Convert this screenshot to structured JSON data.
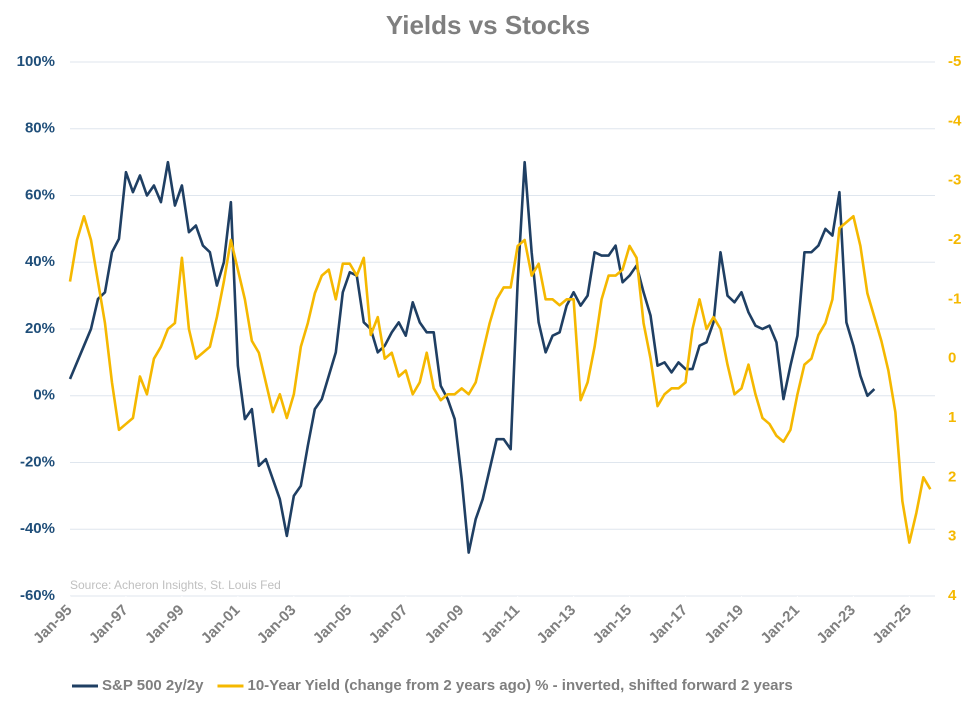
{
  "chart_data": {
    "type": "line",
    "title": "Yields vs Stocks",
    "source": "Source: Acheron Insights, St. Louis Fed",
    "x": [
      "1995-01",
      "1995-04",
      "1995-07",
      "1995-10",
      "1996-01",
      "1996-04",
      "1996-07",
      "1996-10",
      "1997-01",
      "1997-04",
      "1997-07",
      "1997-10",
      "1998-01",
      "1998-04",
      "1998-07",
      "1998-10",
      "1999-01",
      "1999-04",
      "1999-07",
      "1999-10",
      "2000-01",
      "2000-04",
      "2000-07",
      "2000-10",
      "2001-01",
      "2001-04",
      "2001-07",
      "2001-10",
      "2002-01",
      "2002-04",
      "2002-07",
      "2002-10",
      "2003-01",
      "2003-04",
      "2003-07",
      "2003-10",
      "2004-01",
      "2004-04",
      "2004-07",
      "2004-10",
      "2005-01",
      "2005-04",
      "2005-07",
      "2005-10",
      "2006-01",
      "2006-04",
      "2006-07",
      "2006-10",
      "2007-01",
      "2007-04",
      "2007-07",
      "2007-10",
      "2008-01",
      "2008-04",
      "2008-07",
      "2008-10",
      "2009-01",
      "2009-04",
      "2009-07",
      "2009-10",
      "2010-01",
      "2010-04",
      "2010-07",
      "2010-10",
      "2011-01",
      "2011-04",
      "2011-07",
      "2011-10",
      "2012-01",
      "2012-04",
      "2012-07",
      "2012-10",
      "2013-01",
      "2013-04",
      "2013-07",
      "2013-10",
      "2014-01",
      "2014-04",
      "2014-07",
      "2014-10",
      "2015-01",
      "2015-04",
      "2015-07",
      "2015-10",
      "2016-01",
      "2016-04",
      "2016-07",
      "2016-10",
      "2017-01",
      "2017-04",
      "2017-07",
      "2017-10",
      "2018-01",
      "2018-04",
      "2018-07",
      "2018-10",
      "2019-01",
      "2019-04",
      "2019-07",
      "2019-10",
      "2020-01",
      "2020-04",
      "2020-07",
      "2020-10",
      "2021-01",
      "2021-04",
      "2021-07",
      "2021-10",
      "2022-01",
      "2022-04",
      "2022-07",
      "2022-10",
      "2023-01",
      "2023-04",
      "2023-07",
      "2023-10",
      "2024-01",
      "2024-04",
      "2024-07",
      "2024-10",
      "2025-01",
      "2025-04",
      "2025-07",
      "2025-10"
    ],
    "series": [
      {
        "name": "S&P 500 2y/2y",
        "color": "#1f3f63",
        "axis": "y",
        "values": [
          5,
          10,
          15,
          20,
          29,
          31,
          43,
          47,
          67,
          61,
          66,
          60,
          63,
          58,
          70,
          57,
          63,
          49,
          51,
          45,
          43,
          33,
          40,
          58,
          9,
          -7,
          -4,
          -21,
          -19,
          -25,
          -31,
          -42,
          -30,
          -27,
          -15,
          -4,
          -1,
          6,
          13,
          31,
          37,
          36,
          22,
          20,
          13,
          15,
          19,
          22,
          18,
          28,
          22,
          19,
          19,
          3,
          -1,
          -7,
          -25,
          -47,
          -37,
          -31,
          -22,
          -13,
          -13,
          -16,
          34,
          70,
          43,
          22,
          13,
          18,
          19,
          27,
          31,
          27,
          30,
          43,
          42,
          42,
          45,
          34,
          36,
          39,
          31,
          24,
          9,
          10,
          7,
          10,
          8,
          8,
          15,
          16,
          22,
          43,
          30,
          28,
          31,
          25,
          21,
          20,
          21,
          16,
          -1,
          9,
          18,
          43,
          43,
          45,
          50,
          48,
          61,
          22,
          15,
          6,
          0,
          2,
          null,
          null,
          null,
          null,
          null,
          null,
          null,
          null
        ]
      },
      {
        "name": "10-Year Yield (change from 2 years ago) % - inverted, shifted forward 2 years",
        "color": "#f5b800",
        "axis": "y2",
        "values": [
          -1.3,
          -2.0,
          -2.4,
          -2.0,
          -1.3,
          -0.6,
          0.4,
          1.2,
          1.1,
          1.0,
          0.3,
          0.6,
          0.0,
          -0.2,
          -0.5,
          -0.6,
          -1.7,
          -0.5,
          0.0,
          -0.1,
          -0.2,
          -0.7,
          -1.3,
          -2.0,
          -1.5,
          -1.0,
          -0.3,
          -0.1,
          0.4,
          0.9,
          0.6,
          1.0,
          0.6,
          -0.2,
          -0.6,
          -1.1,
          -1.4,
          -1.5,
          -1.0,
          -1.6,
          -1.6,
          -1.4,
          -1.7,
          -0.4,
          -0.7,
          0.0,
          -0.1,
          0.3,
          0.2,
          0.6,
          0.4,
          -0.1,
          0.5,
          0.7,
          0.6,
          0.6,
          0.5,
          0.6,
          0.4,
          -0.1,
          -0.6,
          -1.0,
          -1.2,
          -1.2,
          -1.9,
          -2.0,
          -1.4,
          -1.6,
          -1.0,
          -1.0,
          -0.9,
          -1.0,
          -1.0,
          0.7,
          0.4,
          -0.2,
          -1.0,
          -1.4,
          -1.4,
          -1.5,
          -1.9,
          -1.7,
          -0.6,
          0.0,
          0.8,
          0.6,
          0.5,
          0.5,
          0.4,
          -0.5,
          -1.0,
          -0.5,
          -0.7,
          -0.5,
          0.1,
          0.6,
          0.5,
          0.1,
          0.6,
          1.0,
          1.1,
          1.3,
          1.4,
          1.2,
          0.6,
          0.1,
          0.0,
          -0.4,
          -0.6,
          -1.0,
          -2.2,
          -2.3,
          -2.4,
          -1.9,
          -1.1,
          -0.7,
          -0.3,
          0.2,
          0.9,
          2.4,
          3.1,
          2.6,
          2.0,
          2.2
        ]
      }
    ],
    "xlim": [
      "1995-01",
      "2025-12"
    ],
    "xticks": [
      {
        "value": "1995-01",
        "label": "Jan-95"
      },
      {
        "value": "1997-01",
        "label": "Jan-97"
      },
      {
        "value": "1999-01",
        "label": "Jan-99"
      },
      {
        "value": "2001-01",
        "label": "Jan-01"
      },
      {
        "value": "2003-01",
        "label": "Jan-03"
      },
      {
        "value": "2005-01",
        "label": "Jan-05"
      },
      {
        "value": "2007-01",
        "label": "Jan-07"
      },
      {
        "value": "2009-01",
        "label": "Jan-09"
      },
      {
        "value": "2011-01",
        "label": "Jan-11"
      },
      {
        "value": "2013-01",
        "label": "Jan-13"
      },
      {
        "value": "2015-01",
        "label": "Jan-15"
      },
      {
        "value": "2017-01",
        "label": "Jan-17"
      },
      {
        "value": "2019-01",
        "label": "Jan-19"
      },
      {
        "value": "2021-01",
        "label": "Jan-21"
      },
      {
        "value": "2023-01",
        "label": "Jan-23"
      },
      {
        "value": "2025-01",
        "label": "Jan-25"
      }
    ],
    "ylim": [
      -60,
      100
    ],
    "yticks": [
      {
        "value": -60,
        "label": "-60%"
      },
      {
        "value": -40,
        "label": "-40%"
      },
      {
        "value": -20,
        "label": "-20%"
      },
      {
        "value": 0,
        "label": "0%"
      },
      {
        "value": 20,
        "label": "20%"
      },
      {
        "value": 40,
        "label": "40%"
      },
      {
        "value": 60,
        "label": "60%"
      },
      {
        "value": 80,
        "label": "80%"
      },
      {
        "value": 100,
        "label": "100%"
      }
    ],
    "y2lim": [
      4,
      -5
    ],
    "y2ticks": [
      4,
      3,
      2,
      1,
      0,
      -1,
      -2,
      -3,
      -4,
      -5
    ],
    "grid": true,
    "legend": "bottom"
  }
}
